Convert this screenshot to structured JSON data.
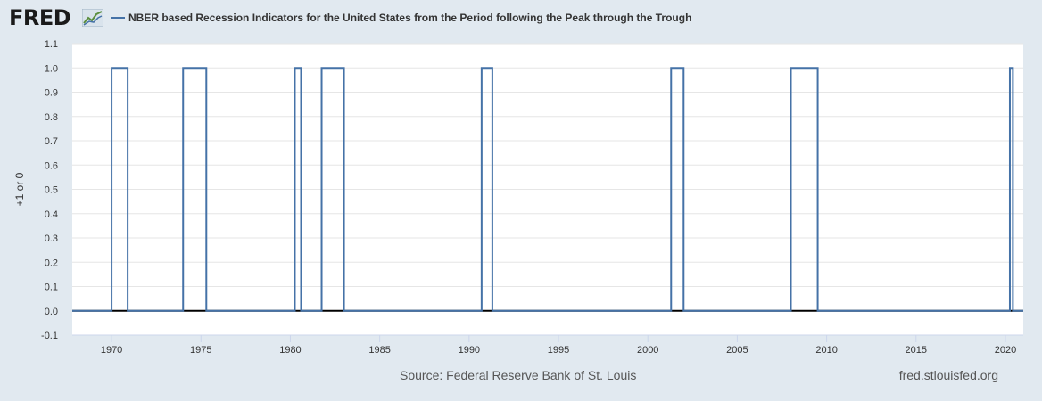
{
  "header": {
    "logo_text": "FRED",
    "logo_icon": "line-graph-icon",
    "legend_label": "NBER based Recession Indicators for the United States from the Period following the Peak through the Trough",
    "legend_color": "#4572a7"
  },
  "footer": {
    "source": "Source: Federal Reserve Bank of St. Louis",
    "site": "fred.stlouisfed.org"
  },
  "chart_data": {
    "type": "line",
    "step": true,
    "title": "",
    "xlabel": "",
    "ylabel": "+1 or 0",
    "xlim": [
      1967.8,
      2021.0
    ],
    "ylim": [
      -0.1,
      1.1
    ],
    "yticks": [
      "-0.1",
      "0.0",
      "0.1",
      "0.2",
      "0.3",
      "0.4",
      "0.5",
      "0.6",
      "0.7",
      "0.8",
      "0.9",
      "1.0",
      "1.1"
    ],
    "xticks": [
      "1970",
      "1975",
      "1980",
      "1985",
      "1990",
      "1995",
      "2000",
      "2005",
      "2010",
      "2015",
      "2020"
    ],
    "grid": true,
    "series": [
      {
        "color": "#4572a7",
        "recession_periods": [
          [
            1970.0,
            1970.9
          ],
          [
            1974.0,
            1975.3
          ],
          [
            1980.25,
            1980.6
          ],
          [
            1981.75,
            1983.0
          ],
          [
            1990.7,
            1991.3
          ],
          [
            2001.3,
            2002.0
          ],
          [
            2008.0,
            2009.5
          ],
          [
            2020.25,
            2020.42
          ]
        ]
      }
    ]
  }
}
